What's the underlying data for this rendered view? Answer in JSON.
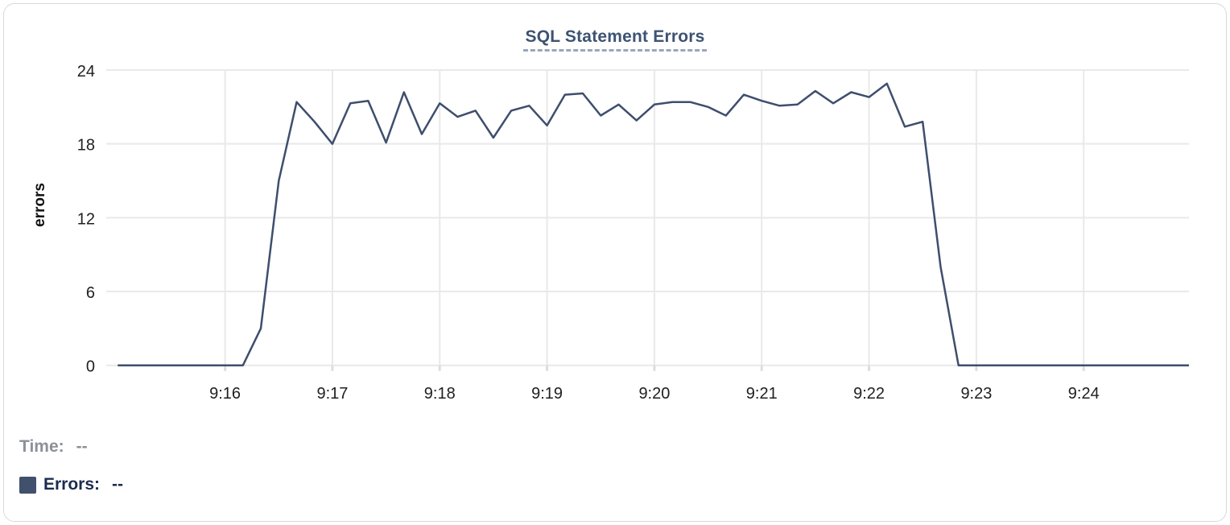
{
  "header": {
    "title": "SQL Statement Errors"
  },
  "legend": {
    "time_label": "Time:",
    "time_value": "--",
    "errors_label": "Errors:",
    "errors_value": "--",
    "swatch_color": "#41506c"
  },
  "colors": {
    "line": "#3e4e6d",
    "title_text": "#3d5373",
    "title_underline": "#9aa6bc",
    "grid": "#e9e9e9",
    "tick_stub": "#dddddd",
    "tick_text": "#202020",
    "time_legend_text": "#8c9099",
    "errors_legend_text": "#1d2b4f",
    "card_border": "#d9d9d9",
    "background": "#ffffff"
  },
  "chart_data": {
    "type": "line",
    "title": "SQL Statement Errors",
    "xlabel": "",
    "ylabel": "errors",
    "x_tick_labels": [
      "9:16",
      "9:17",
      "9:18",
      "9:19",
      "9:20",
      "9:21",
      "9:22",
      "9:23",
      "9:24"
    ],
    "y_ticks": [
      0,
      6,
      12,
      18,
      24
    ],
    "ylim": [
      0,
      24
    ],
    "x_range": [
      "9:15:00",
      "9:25:00"
    ],
    "grid": true,
    "legend_position": "bottom-left",
    "series": [
      {
        "name": "Errors",
        "color": "#3e4e6d",
        "times": [
          "9:15:00",
          "9:15:10",
          "9:15:20",
          "9:15:30",
          "9:15:40",
          "9:15:50",
          "9:16:00",
          "9:16:10",
          "9:16:20",
          "9:16:30",
          "9:16:40",
          "9:16:50",
          "9:17:00",
          "9:17:10",
          "9:17:20",
          "9:17:30",
          "9:17:40",
          "9:17:50",
          "9:18:00",
          "9:18:10",
          "9:18:20",
          "9:18:30",
          "9:18:40",
          "9:18:50",
          "9:19:00",
          "9:19:10",
          "9:19:20",
          "9:19:30",
          "9:19:40",
          "9:19:50",
          "9:20:00",
          "9:20:10",
          "9:20:20",
          "9:20:30",
          "9:20:40",
          "9:20:50",
          "9:21:00",
          "9:21:10",
          "9:21:20",
          "9:21:30",
          "9:21:40",
          "9:21:50",
          "9:22:00",
          "9:22:10",
          "9:22:20",
          "9:22:30",
          "9:22:40",
          "9:22:50",
          "9:23:00",
          "9:23:10",
          "9:23:20",
          "9:23:30",
          "9:23:40",
          "9:23:50",
          "9:24:00",
          "9:24:10",
          "9:24:20",
          "9:24:30",
          "9:24:40",
          "9:24:50",
          "9:25:00"
        ],
        "values": [
          0,
          0,
          0,
          0,
          0,
          0,
          0,
          0,
          3,
          15,
          21.4,
          19.8,
          18,
          21.3,
          21.5,
          18.1,
          22.2,
          18.8,
          21.3,
          20.2,
          20.7,
          18.5,
          20.7,
          21.1,
          19.5,
          22,
          22.1,
          20.3,
          21.2,
          19.9,
          21.2,
          21.4,
          21.4,
          21,
          20.3,
          22,
          21.5,
          21.1,
          21.2,
          22.3,
          21.3,
          22.2,
          21.8,
          22.9,
          19.4,
          19.8,
          8,
          0,
          0,
          0,
          0,
          0,
          0,
          0,
          0,
          0,
          0,
          0,
          0,
          0,
          0
        ]
      }
    ]
  }
}
